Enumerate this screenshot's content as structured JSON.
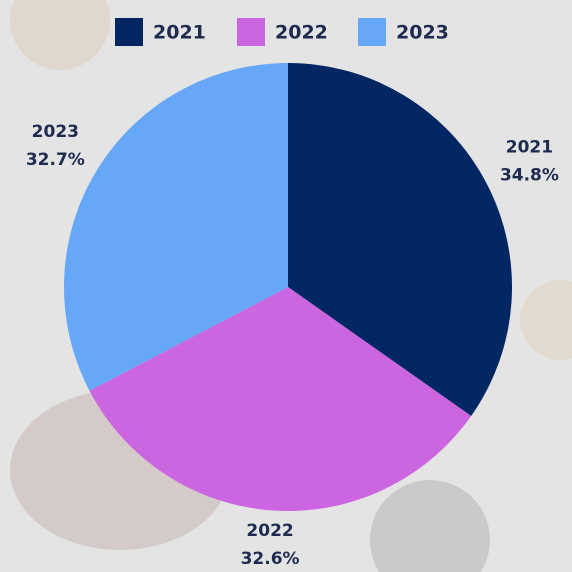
{
  "chart_data": {
    "type": "pie",
    "categories": [
      "2021",
      "2022",
      "2023"
    ],
    "values": [
      34.8,
      32.6,
      32.7
    ],
    "value_labels": [
      "34.8%",
      "32.6%",
      "32.7%"
    ],
    "colors": [
      "#002664",
      "#cc66e0",
      "#66a8f7"
    ],
    "legend": "top"
  }
}
